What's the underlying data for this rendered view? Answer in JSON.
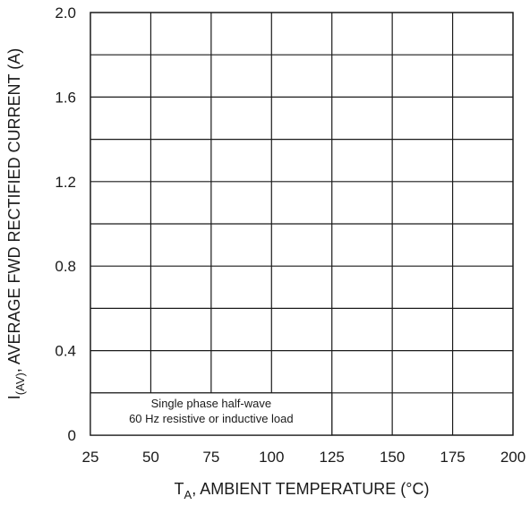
{
  "chart_data": {
    "type": "line",
    "title": "",
    "x": [],
    "series": [],
    "xlabel_main": "T",
    "xlabel_sub": "A",
    "xlabel_rest": ", AMBIENT TEMPERATURE (°C)",
    "ylabel_main": "I",
    "ylabel_sub": "(AV)",
    "ylabel_rest": ", AVERAGE FWD RECTIFIED CURRENT (A)",
    "xlim": [
      25,
      200
    ],
    "ylim": [
      0,
      2.0
    ],
    "x_ticks": [
      25,
      50,
      75,
      100,
      125,
      150,
      175,
      200
    ],
    "x_tick_labels": [
      "25",
      "50",
      "75",
      "100",
      "125",
      "150",
      "175",
      "200"
    ],
    "y_ticks": [
      0,
      0.4,
      0.8,
      1.2,
      1.6,
      2.0
    ],
    "y_tick_labels": [
      "0",
      "0.4",
      "0.8",
      "1.2",
      "1.6",
      "2.0"
    ],
    "y_grid_step": 0.2,
    "grid": true,
    "annotation": {
      "line1": "Single phase half-wave",
      "line2": "60 Hz resistive or inductive load"
    }
  }
}
